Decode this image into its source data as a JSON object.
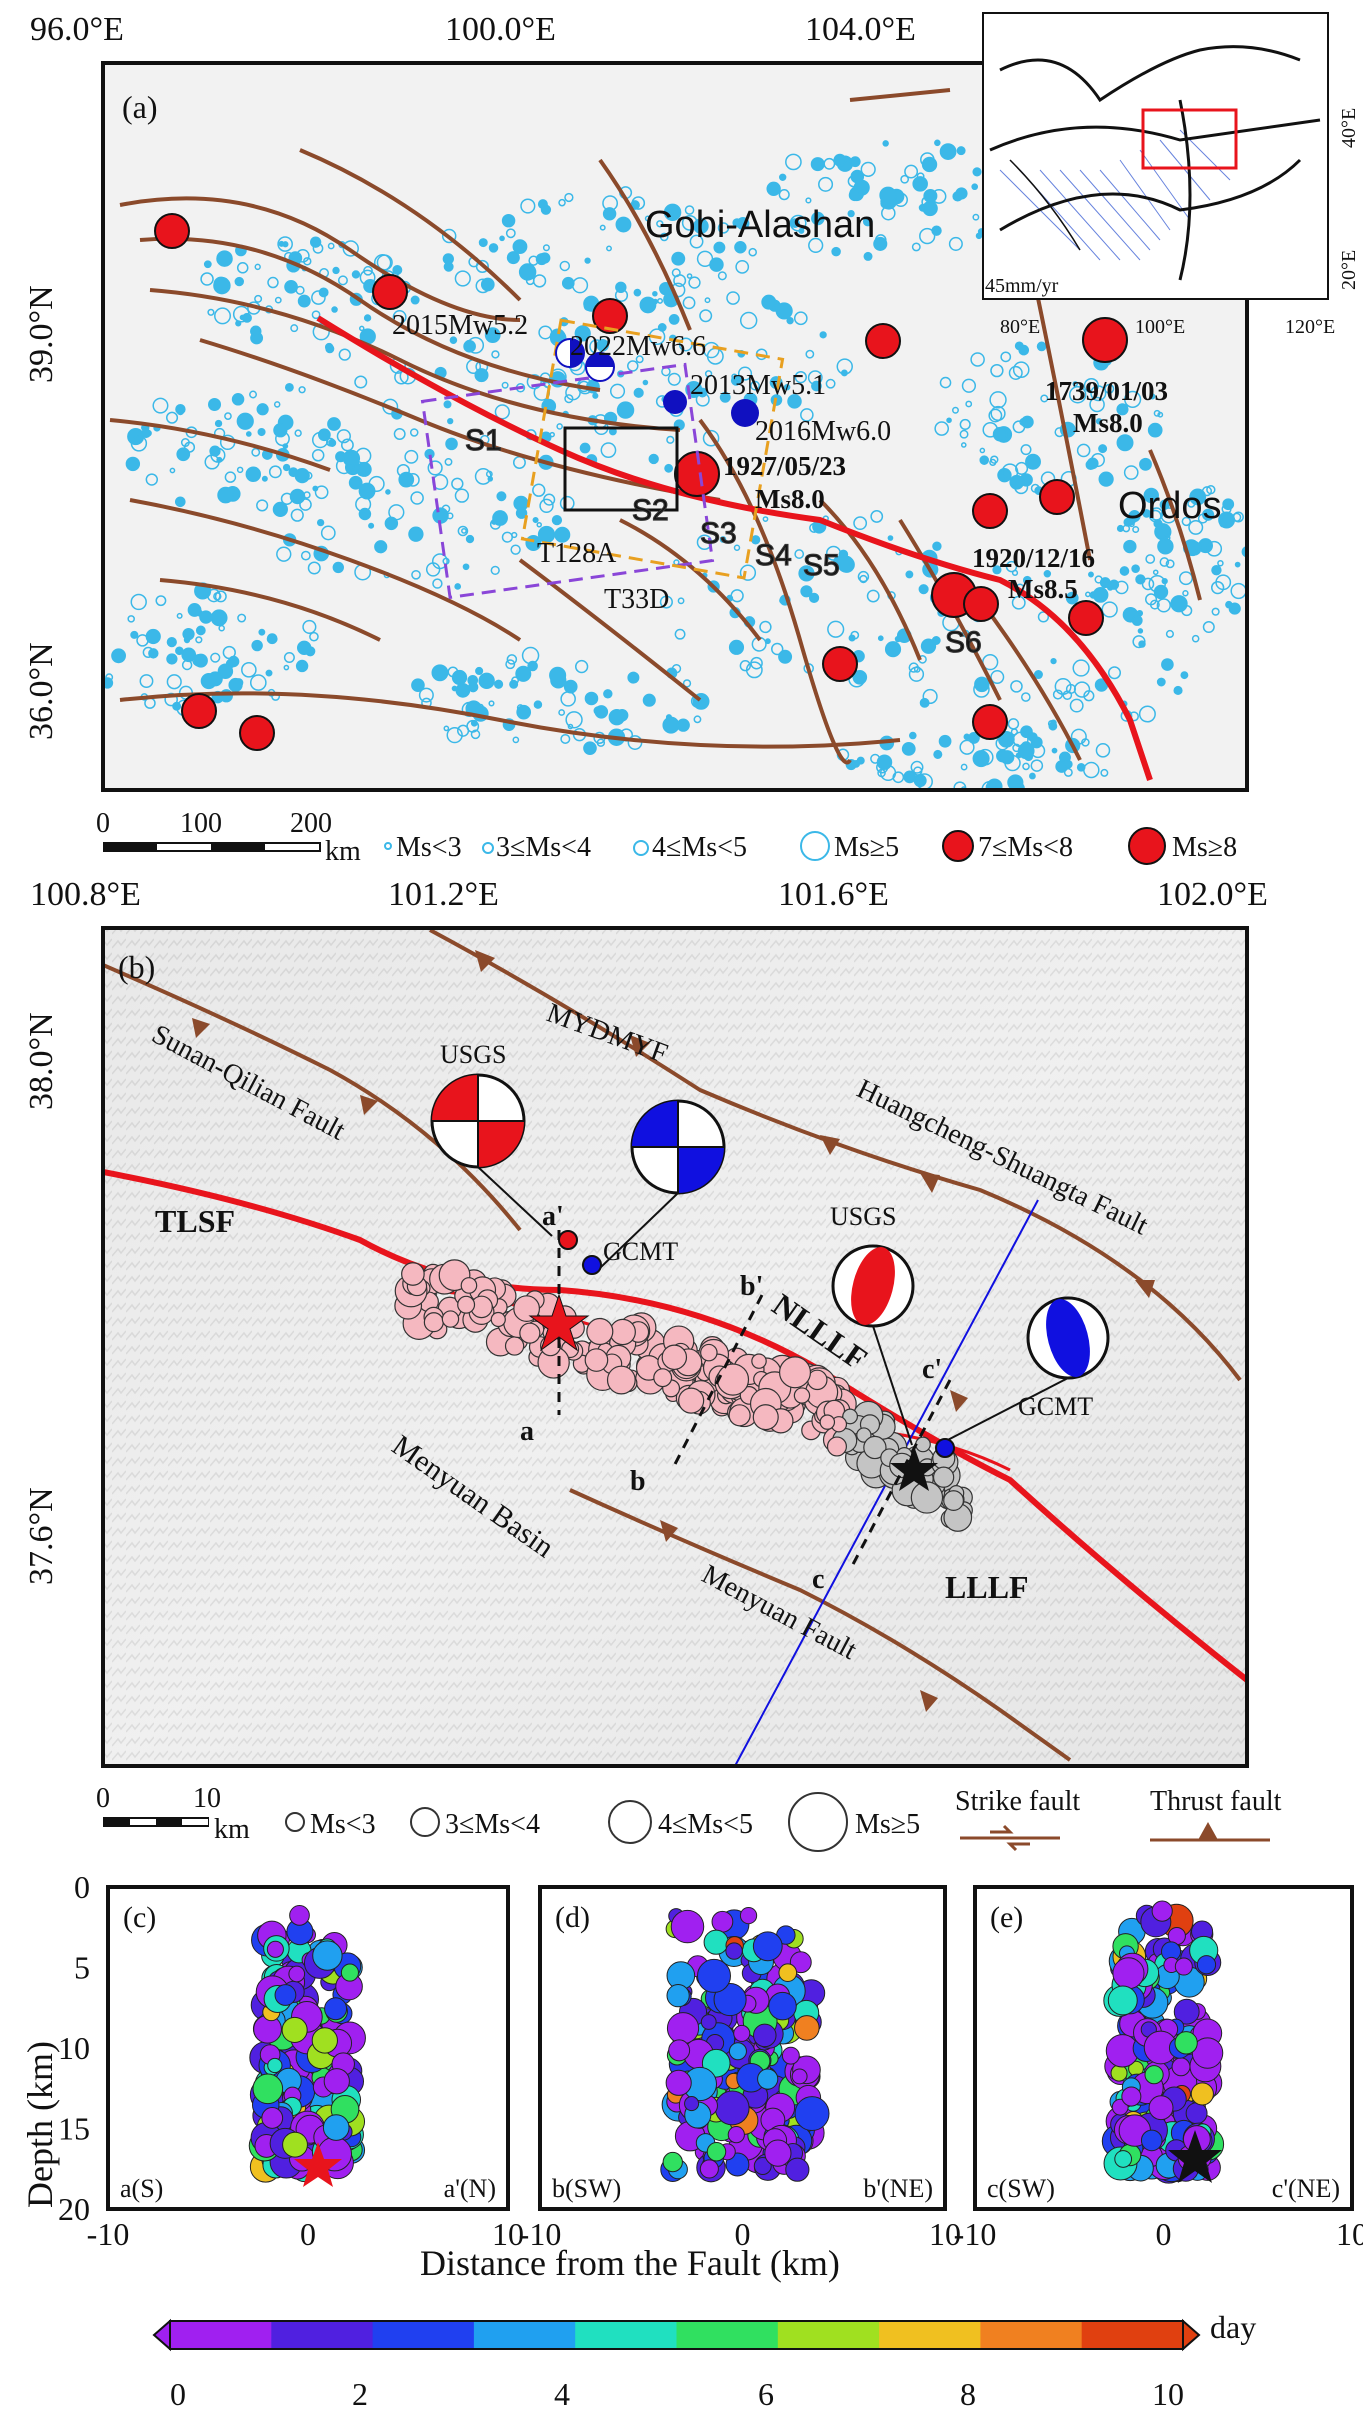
{
  "panel_a": {
    "label": "(a)",
    "x_ticks": [
      "96.0°E",
      "100.0°E",
      "104.0°E"
    ],
    "y_ticks": [
      "39.0°N",
      "36.0°N"
    ],
    "regions": [
      "Gobi-Alashan",
      "Ordos"
    ],
    "events": [
      {
        "name": "2015Mw5.2"
      },
      {
        "name": "2022Mw6.6"
      },
      {
        "name": "2013Mw5.1"
      },
      {
        "name": "2016Mw6.0"
      }
    ],
    "historic": [
      {
        "date": "1739/01/03",
        "mag": "Ms8.0"
      },
      {
        "date": "1927/05/23",
        "mag": "Ms8.0"
      },
      {
        "date": "1920/12/16",
        "mag": "Ms8.5"
      }
    ],
    "segments": [
      "S1",
      "S2",
      "S3",
      "S4",
      "S5",
      "S6"
    ],
    "tracks": [
      "T128A",
      "T33D"
    ],
    "scale": {
      "ticks": [
        "0",
        "100",
        "200"
      ],
      "unit": "km"
    },
    "legend": [
      "Ms<3",
      "3≤Ms<4",
      "4≤Ms<5",
      "Ms≥5",
      "7≤Ms<8",
      "Ms≥8"
    ],
    "inset": {
      "speed": "45mm/yr",
      "x_ticks": [
        "80°E",
        "100°E",
        "120°E"
      ],
      "y_ticks": [
        "40°E",
        "20°E"
      ]
    }
  },
  "panel_b": {
    "label": "(b)",
    "x_ticks": [
      "100.8°E",
      "101.2°E",
      "101.6°E",
      "102.0°E"
    ],
    "y_ticks": [
      "38.0°N",
      "37.6°N"
    ],
    "faults": [
      "MYDMYF",
      "Sunan-Qilian Fault",
      "Huangcheng-Shuangta Fault",
      "TLSF",
      "LLLF",
      "NLLLF",
      "Menyuan Fault"
    ],
    "basin": "Menyuan Basin",
    "mechanisms": [
      "USGS",
      "GCMT",
      "USGS",
      "GCMT"
    ],
    "profiles": [
      "a",
      "a'",
      "b",
      "b'",
      "c",
      "c'"
    ],
    "scale": {
      "ticks": [
        "0",
        "10"
      ],
      "unit": "km"
    },
    "legend": [
      "Ms<3",
      "3≤Ms<4",
      "4≤Ms<5",
      "Ms≥5"
    ],
    "fault_legend": [
      "Strike fault",
      "Thrust fault"
    ]
  },
  "profiles": {
    "ylabel": "Depth (km)",
    "xlabel": "Distance from the Fault (km)",
    "y_ticks": [
      "0",
      "5",
      "10",
      "15",
      "20"
    ],
    "x_ticks": [
      "-10",
      "0",
      "10"
    ],
    "panels": [
      {
        "label": "(c)",
        "left": "a(S)",
        "right": "a'(N)"
      },
      {
        "label": "(d)",
        "left": "b(SW)",
        "right": "b'(NE)"
      },
      {
        "label": "(e)",
        "left": "c(SW)",
        "right": "c'(NE)"
      }
    ]
  },
  "colorbar": {
    "ticks": [
      "0",
      "2",
      "4",
      "6",
      "8",
      "10"
    ],
    "unit": "day"
  },
  "colors": {
    "seismic": "#3bb8e8",
    "fault": "#8b4a2b",
    "main_fault": "#e8141c",
    "event": "#e8141c"
  }
}
